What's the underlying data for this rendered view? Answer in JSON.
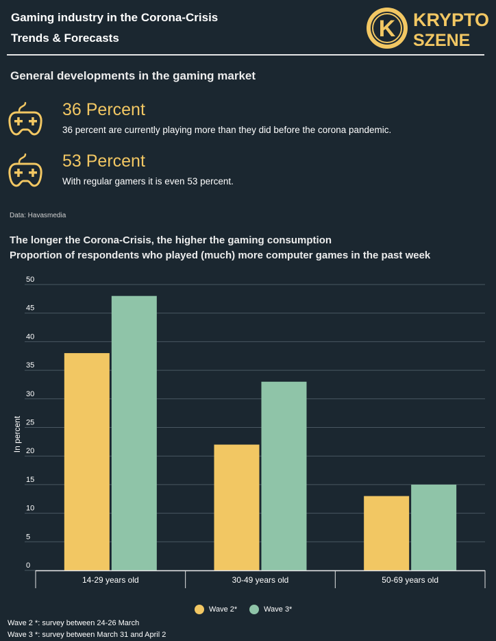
{
  "header": {
    "title_line1": "Gaming industry in the Corona-Crisis",
    "title_line2": "Trends & Forecasts"
  },
  "logo": {
    "line1": "KRYPTO",
    "line2": "SZENE",
    "monogram": "K",
    "color": "#f2c763"
  },
  "section": {
    "title": "General developments in the gaming market"
  },
  "stats": [
    {
      "headline": "36 Percent",
      "text": "36 percent are currently playing more than they did before the corona pandemic.",
      "icon": "gamepad-icon"
    },
    {
      "headline": "53 Percent",
      "text": "With regular gamers it is even 53 percent.",
      "icon": "gamepad-icon"
    }
  ],
  "source": "Data: Havasmedia",
  "chart_title": {
    "line1": "The longer the Corona-Crisis, the higher the gaming consumption",
    "line2": "Proportion of respondents who played (much) more computer games in the past week"
  },
  "chart_data": {
    "type": "bar",
    "title": "The longer the Corona-Crisis, the higher the gaming consumption",
    "subtitle": "Proportion of respondents who played (much) more computer games in the past week",
    "categories": [
      "14-29 years old",
      "30-49 years old",
      "50-69 years old"
    ],
    "series": [
      {
        "name": "Wave 2*",
        "values": [
          38,
          22,
          13
        ],
        "color": "#f2c763"
      },
      {
        "name": "Wave 3*",
        "values": [
          48,
          33,
          15
        ],
        "color": "#8fc4a8"
      }
    ],
    "xlabel": "",
    "ylabel": "In percent",
    "ylim": [
      0,
      50
    ],
    "yticks": [
      0,
      5,
      10,
      15,
      20,
      25,
      30,
      35,
      40,
      45,
      50
    ],
    "grid": true,
    "legend": "bottom"
  },
  "notes": [
    "Wave 2 *: survey between 24-26 March",
    "Wave 3 *: survey between March 31 and April 2"
  ]
}
